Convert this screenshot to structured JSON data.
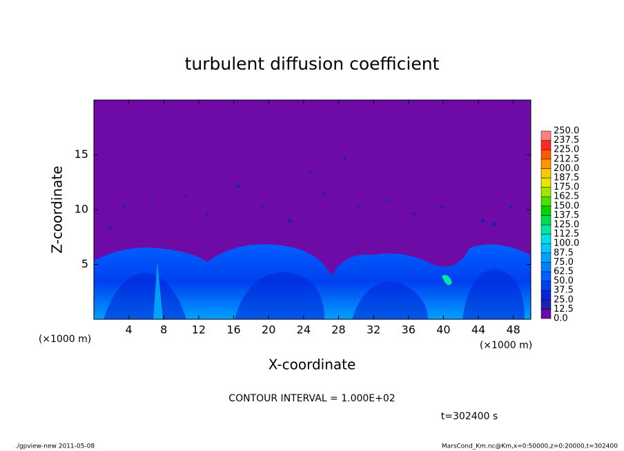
{
  "chart_data": {
    "type": "contour",
    "title": "turbulent diffusion coefficient",
    "xlabel": "X-coordinate",
    "ylabel": "Z-coordinate",
    "xunit": "(×1000 m)",
    "yunit": "(×1000 m)",
    "xlim": [
      0,
      50
    ],
    "ylim": [
      0,
      20
    ],
    "xticks": [
      4,
      8,
      12,
      16,
      20,
      24,
      28,
      32,
      36,
      40,
      44,
      48
    ],
    "yticks": [
      5,
      10,
      15
    ],
    "colorbar": {
      "levels": [
        {
          "value": 0,
          "label": "0.0"
        },
        12.5,
        {
          "value": 25,
          "label": "25.0"
        },
        37.5,
        {
          "value": 50,
          "label": "50.0"
        },
        62.5,
        {
          "value": 75,
          "label": "75.0"
        },
        87.5,
        {
          "value": 100,
          "label": "100.0"
        },
        112.5,
        {
          "value": 125,
          "label": "125.0"
        },
        137.5,
        {
          "value": 150,
          "label": "150.0"
        },
        162.5,
        {
          "value": 175,
          "label": "175.0"
        },
        187.5,
        {
          "value": 200,
          "label": "200.0"
        },
        212.5,
        {
          "value": 225,
          "label": "225.0"
        },
        237.5,
        {
          "value": 250,
          "label": "250.0"
        }
      ],
      "colors": [
        "#6e0aa6",
        "#1e1eb4",
        "#0028d8",
        "#0040f0",
        "#0060ff",
        "#0080ff",
        "#00a0ff",
        "#00c8ff",
        "#00e0e0",
        "#00e6a0",
        "#00dc50",
        "#00d200",
        "#50e000",
        "#a0e600",
        "#e6e600",
        "#ffc800",
        "#ff9600",
        "#ff5a00",
        "#ff2828",
        "#ff8080"
      ]
    },
    "annotations": [
      "CONTOUR INTERVAL = 1.000E+02",
      "t=302400 s"
    ],
    "footer_left": "./gpview-new  2011-05-08",
    "footer_right": "MarsCond_Km.nc@Km,x=0:50000,z=0:20000,t=302400"
  }
}
